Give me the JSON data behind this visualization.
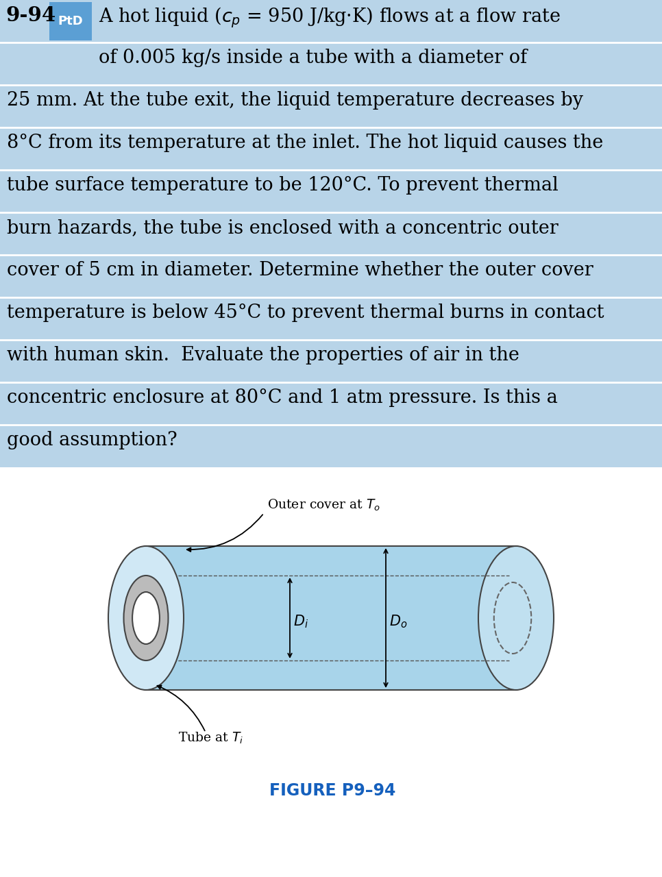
{
  "problem_number": "9-94",
  "ptd_label": "PtD",
  "ptd_bg_color": "#5b9fd4",
  "row_bg_color": "#b8d4e8",
  "row_alt_bg_color": "#c5dcea",
  "bg_color": "#ffffff",
  "figure_label": "FIGURE P9–94",
  "figure_label_color": "#1560bd",
  "tube_fill_color": "#a8d4ea",
  "tube_right_face_color": "#c0e0f0",
  "tube_left_face_color": "#d0e8f5",
  "tube_edge_color": "#444444",
  "line1": "A hot liquid ($c_p$ = 950 J/kg·K) flows at a flow rate",
  "line2": "of 0.005 kg/s inside a tube with a diameter of",
  "body_lines": [
    "25 mm. At the tube exit, the liquid temperature decreases by",
    "8°C from its temperature at the inlet. The hot liquid causes the",
    "tube surface temperature to be 120°C. To prevent thermal",
    "burn hazards, the tube is enclosed with a concentric outer",
    "cover of 5 cm in diameter. Determine whether the outer cover",
    "temperature is below 45°C to prevent thermal burns in contact",
    "with human skin.  Evaluate the properties of air in the",
    "concentric enclosure at 80°C and 1 atm pressure. Is this a",
    "good assumption?"
  ],
  "outer_cover_label": "Outer cover at $T_o$",
  "tube_label": "Tube at $T_i$",
  "Di_label": "$D_i$",
  "Do_label": "$D_o$",
  "text_fontsize": 19.5,
  "header_fontsize": 19.5,
  "annot_fontsize": 13.5,
  "dim_fontsize": 15,
  "fig_label_fontsize": 17
}
